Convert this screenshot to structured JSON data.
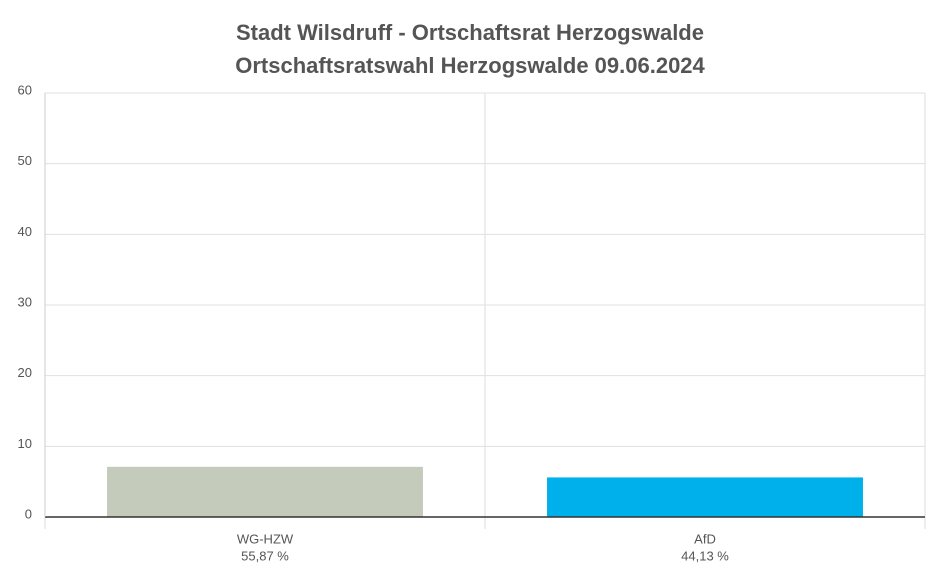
{
  "chart_data": {
    "type": "bar",
    "title": "Stadt Wilsdruff - Ortschaftsrat Herzogswalde",
    "subtitle": "Ortschaftsratswahl Herzogswalde 09.06.2024",
    "categories": [
      "WG-HZW",
      "AfD"
    ],
    "category_sublabels": [
      "55,87 %",
      "44,13 %"
    ],
    "values": [
      7.1,
      5.6
    ],
    "colors": [
      "#c5cbbb",
      "#00b0eb"
    ],
    "ylim": [
      0,
      60
    ],
    "yticks": [
      0,
      10,
      20,
      30,
      40,
      50,
      60
    ],
    "grid": true
  }
}
